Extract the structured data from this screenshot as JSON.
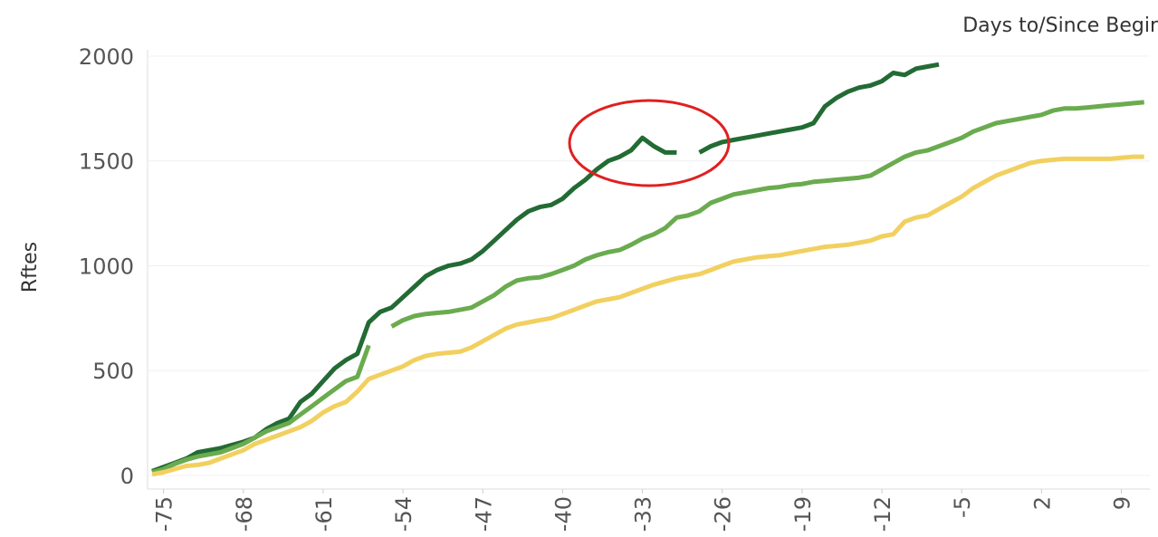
{
  "chart_data": {
    "type": "line",
    "xlabel": "Days to/Since Begir",
    "ylabel": "Rftes",
    "x": [
      -76,
      -75,
      -74,
      -73,
      -72,
      -71,
      -70,
      -69,
      -68,
      -67,
      -66,
      -65,
      -64,
      -63,
      -62,
      -61,
      -60,
      -59,
      -58,
      -57,
      -56,
      -55,
      -54,
      -53,
      -52,
      -51,
      -50,
      -49,
      -48,
      -47,
      -46,
      -45,
      -44,
      -43,
      -42,
      -41,
      -40,
      -39,
      -38,
      -37,
      -36,
      -35,
      -34,
      -33,
      -32,
      -31,
      -30,
      -29,
      -28,
      -27,
      -26,
      -25,
      -24,
      -23,
      -22,
      -21,
      -20,
      -19,
      -18,
      -17,
      -16,
      -15,
      -14,
      -13,
      -12,
      -11,
      -10,
      -9,
      -8,
      -7,
      -6,
      -5,
      -4,
      -3,
      -2,
      -1,
      0,
      1,
      2,
      3,
      4,
      5,
      6,
      7,
      8,
      9,
      10,
      11
    ],
    "series": [
      {
        "color": "#236b34",
        "values": [
          20,
          40,
          60,
          80,
          110,
          120,
          130,
          145,
          160,
          180,
          220,
          250,
          270,
          350,
          390,
          450,
          510,
          550,
          580,
          730,
          780,
          800,
          850,
          900,
          950,
          980,
          1000,
          1010,
          1030,
          1070,
          1120,
          1170,
          1220,
          1260,
          1280,
          1290,
          1320,
          1370,
          1410,
          1460,
          1500,
          1520,
          1550,
          1610,
          1570,
          1540,
          1540,
          null,
          1540,
          1570,
          1590,
          1600,
          1610,
          1620,
          1630,
          1640,
          1650,
          1660,
          1680,
          1760,
          1800,
          1830,
          1850,
          1860,
          1880,
          1920,
          1910,
          1940,
          1950,
          1960,
          null,
          null,
          null,
          null,
          null,
          null,
          null,
          null,
          null,
          null,
          null,
          null,
          null,
          null,
          null,
          null,
          null,
          null
        ]
      },
      {
        "color": "#6aab4f",
        "values": [
          15,
          30,
          55,
          75,
          90,
          100,
          110,
          130,
          150,
          180,
          210,
          230,
          250,
          290,
          330,
          370,
          410,
          450,
          470,
          620,
          null,
          710,
          740,
          760,
          770,
          775,
          780,
          790,
          800,
          830,
          860,
          900,
          930,
          940,
          945,
          960,
          980,
          1000,
          1030,
          1050,
          1065,
          1075,
          1100,
          1130,
          1150,
          1180,
          1230,
          1240,
          1260,
          1300,
          1320,
          1340,
          1350,
          1360,
          1370,
          1375,
          1385,
          1390,
          1400,
          1405,
          1410,
          1415,
          1420,
          1430,
          1460,
          1490,
          1520,
          1540,
          1550,
          1570,
          1590,
          1610,
          1640,
          1660,
          1680,
          1690,
          1700,
          1710,
          1720,
          1740,
          1750,
          1750,
          1755,
          1760,
          1765,
          1770,
          1775,
          1780
        ]
      },
      {
        "color": "#f2d060",
        "values": [
          5,
          15,
          30,
          45,
          50,
          60,
          80,
          100,
          120,
          150,
          170,
          190,
          210,
          230,
          260,
          300,
          330,
          350,
          400,
          460,
          480,
          500,
          520,
          550,
          570,
          580,
          585,
          590,
          610,
          640,
          670,
          700,
          720,
          730,
          740,
          750,
          770,
          790,
          810,
          830,
          840,
          850,
          870,
          890,
          910,
          925,
          940,
          950,
          960,
          980,
          1000,
          1020,
          1030,
          1040,
          1045,
          1050,
          1060,
          1070,
          1080,
          1090,
          1095,
          1100,
          1110,
          1120,
          1140,
          1150,
          1210,
          1230,
          1240,
          1270,
          1300,
          1330,
          1370,
          1400,
          1430,
          1450,
          1470,
          1490,
          1500,
          1505,
          1510,
          1510,
          1510,
          1510,
          1510,
          1515,
          1520,
          1520
        ]
      }
    ],
    "xlim": [
      -76.4,
      11.5
    ],
    "xticks": [
      -75,
      -68,
      -61,
      -54,
      -47,
      -40,
      -33,
      -26,
      -19,
      -12,
      -5,
      2,
      9
    ],
    "ylim": [
      -65,
      2030
    ],
    "yticks": [
      0,
      500,
      1000,
      1500,
      2000
    ],
    "grid": true
  }
}
